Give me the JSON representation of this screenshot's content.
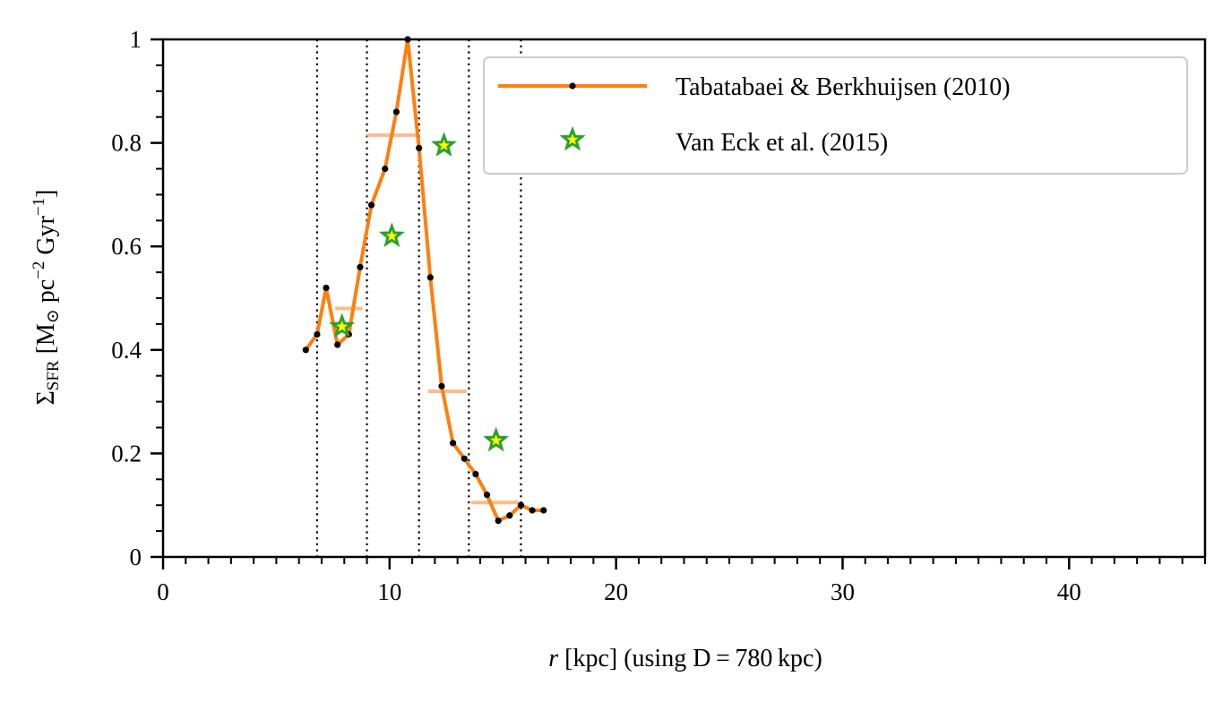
{
  "chart_data": {
    "type": "line",
    "xlabel": {
      "pre": "r",
      "post": " [kpc] (using D = 780 kpc)"
    },
    "ylabel": {
      "sigma": "Σ",
      "sub": "SFR",
      "unit_a": " [M",
      "sun": "⊙",
      "unit_b": " pc",
      "exp1": "−2",
      "unit_c": " Gyr",
      "exp2": "−1",
      "unit_d": "]"
    },
    "xlim": [
      0,
      46
    ],
    "ylim": [
      0,
      1
    ],
    "x_ticks": [
      0,
      10,
      20,
      30,
      40
    ],
    "x_tick_labels": [
      "0",
      "10",
      "20",
      "30",
      "40"
    ],
    "y_ticks": [
      0,
      0.2,
      0.4,
      0.6,
      0.8,
      1
    ],
    "y_tick_labels": [
      "0",
      "0.2",
      "0.4",
      "0.6",
      "0.8",
      "1"
    ],
    "x_minor_step": 1,
    "y_minor_step": 0.05,
    "legend_position": "upper right",
    "series": [
      {
        "name": "Tabatabaei & Berkhuijsen (2010)",
        "color": "#ff7f0e",
        "marker_color": "#000000",
        "x": [
          6.3,
          6.8,
          7.2,
          7.7,
          8.2,
          8.7,
          9.2,
          9.8,
          10.3,
          10.8,
          11.3,
          11.8,
          12.3,
          12.8,
          13.3,
          13.8,
          14.3,
          14.8,
          15.3,
          15.8,
          16.3,
          16.8
        ],
        "y": [
          0.4,
          0.43,
          0.52,
          0.41,
          0.43,
          0.56,
          0.68,
          0.75,
          0.86,
          1.0,
          0.79,
          0.54,
          0.33,
          0.22,
          0.19,
          0.16,
          0.12,
          0.07,
          0.08,
          0.1,
          0.09,
          0.09
        ]
      },
      {
        "name": "Van Eck et al. (2015)",
        "marker": "star",
        "edge_color": "#2ca02c",
        "face_color": "#ffff00",
        "x": [
          7.9,
          10.1,
          12.4,
          14.7
        ],
        "y": [
          0.445,
          0.62,
          0.795,
          0.225
        ]
      }
    ],
    "ring_boundaries_kpc": [
      6.8,
      9.0,
      11.3,
      13.5,
      15.8
    ],
    "ring_averages": {
      "color": "#ffbb88",
      "segments": [
        {
          "x0": 7.6,
          "x1": 8.8,
          "y": 0.48
        },
        {
          "x0": 9.0,
          "x1": 11.3,
          "y": 0.815
        },
        {
          "x0": 11.7,
          "x1": 13.4,
          "y": 0.32
        },
        {
          "x0": 13.6,
          "x1": 15.7,
          "y": 0.105
        }
      ]
    }
  }
}
